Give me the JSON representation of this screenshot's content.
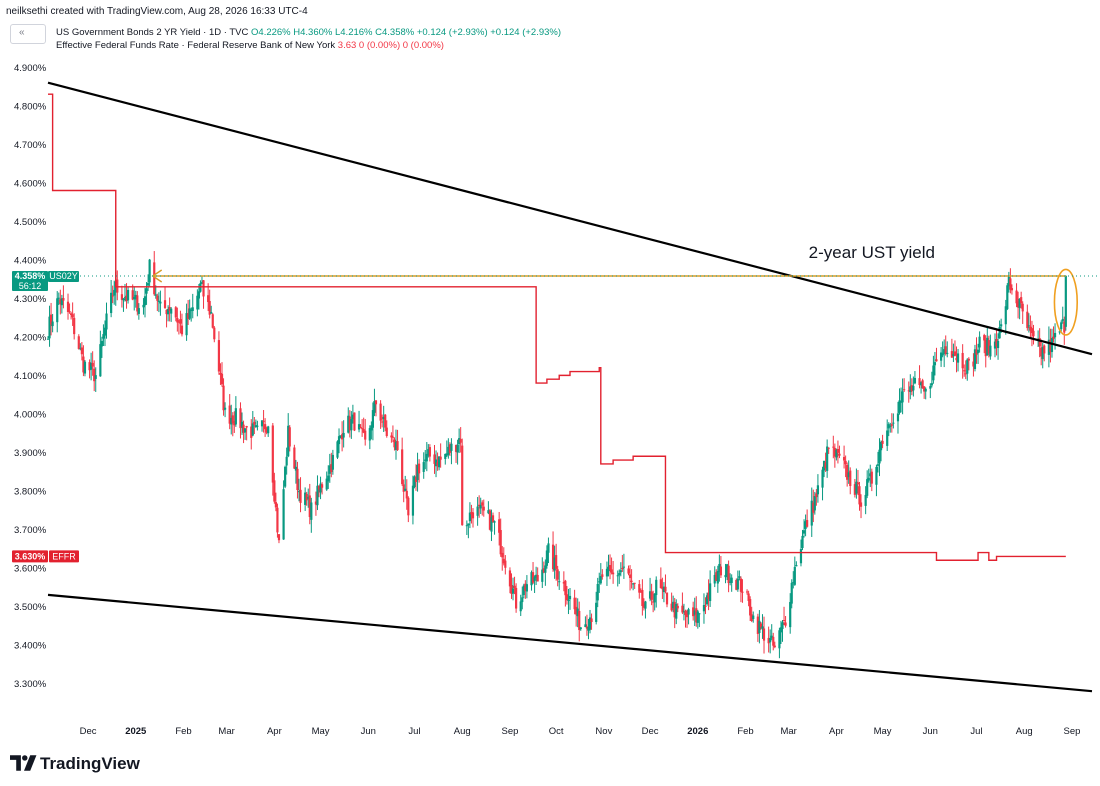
{
  "header": {
    "credit": "neilksethi created with TradingView.com, Aug 28, 2026 16:33 UTC-4",
    "legend_toggle": "«",
    "series1_name": "US Government Bonds 2 YR Yield · 1D · TVC",
    "series1_stats": "O4.226% H4.360% L4.216% C4.358% +0.124 (+2.93%) +0.124 (+2.93%)",
    "series2_name": "Effective Federal Funds Rate · Federal Reserve Bank of New York",
    "series2_stats": "3.63 0 (0.00%) 0 (0.00%)"
  },
  "footer": {
    "brand": "TradingView"
  },
  "colors": {
    "up": "#089981",
    "down": "#f23645",
    "effr": "#e2212f",
    "trendline": "#000000",
    "arrow": "#d79b28",
    "ellipse": "#f0a020"
  },
  "chart_data": {
    "type": "candlestick",
    "title": "2-year UST yield",
    "ylim": [
      3.2,
      4.95
    ],
    "y_ticks": [
      "4.900%",
      "4.800%",
      "4.700%",
      "4.600%",
      "4.500%",
      "4.400%",
      "4.300%",
      "4.200%",
      "4.100%",
      "4.000%",
      "3.900%",
      "3.800%",
      "3.700%",
      "3.600%",
      "3.500%",
      "3.400%",
      "3.300%"
    ],
    "y_tick_values": [
      4.9,
      4.8,
      4.7,
      4.6,
      4.5,
      4.4,
      4.3,
      4.2,
      4.1,
      4.0,
      3.9,
      3.8,
      3.7,
      3.6,
      3.5,
      3.4,
      3.3
    ],
    "x_ticks": [
      {
        "label": "Dec",
        "date": "2024-12-01"
      },
      {
        "label": "2025",
        "date": "2025-01-01"
      },
      {
        "label": "Feb",
        "date": "2025-02-01"
      },
      {
        "label": "Mar",
        "date": "2025-03-01"
      },
      {
        "label": "Apr",
        "date": "2025-04-01"
      },
      {
        "label": "May",
        "date": "2025-05-01"
      },
      {
        "label": "Jun",
        "date": "2025-06-01"
      },
      {
        "label": "Jul",
        "date": "2025-07-01"
      },
      {
        "label": "Aug",
        "date": "2025-08-01"
      },
      {
        "label": "Sep",
        "date": "2025-09-01"
      },
      {
        "label": "Oct",
        "date": "2025-10-01"
      },
      {
        "label": "Nov",
        "date": "2025-11-01"
      },
      {
        "label": "Dec",
        "date": "2025-12-01"
      },
      {
        "label": "2026",
        "date": "2026-01-01"
      },
      {
        "label": "Feb",
        "date": "2026-02-01"
      },
      {
        "label": "Mar",
        "date": "2026-03-01"
      },
      {
        "label": "Apr",
        "date": "2026-04-01"
      },
      {
        "label": "May",
        "date": "2026-05-01"
      },
      {
        "label": "Jun",
        "date": "2026-06-01"
      },
      {
        "label": "Jul",
        "date": "2026-07-01"
      },
      {
        "label": "Aug",
        "date": "2026-08-01"
      },
      {
        "label": "Sep",
        "date": "2026-09-01"
      }
    ],
    "bold_x_ticks": [
      "2025",
      "2026"
    ],
    "x_range": [
      "2024-11-05",
      "2026-09-14"
    ],
    "price_badge": {
      "value": 4.358,
      "text": "4.358%",
      "symbol": "US02Y",
      "countdown": "56:12"
    },
    "effr_badge": {
      "value": 3.63,
      "text": "3.630%",
      "symbol": "EFFR"
    },
    "yield_series": {
      "name": "US02Y",
      "description": "Approximate closing-path anchors of the daily 2-year yield",
      "anchors": [
        [
          "2024-11-05",
          4.22
        ],
        [
          "2024-11-12",
          4.3
        ],
        [
          "2024-11-20",
          4.25
        ],
        [
          "2024-11-28",
          4.13
        ],
        [
          "2024-12-06",
          4.1
        ],
        [
          "2024-12-13",
          4.24
        ],
        [
          "2024-12-18",
          4.33
        ],
        [
          "2024-12-27",
          4.3
        ],
        [
          "2025-01-06",
          4.28
        ],
        [
          "2025-01-10",
          4.38
        ],
        [
          "2025-01-17",
          4.27
        ],
        [
          "2025-01-24",
          4.28
        ],
        [
          "2025-01-31",
          4.22
        ],
        [
          "2025-02-07",
          4.27
        ],
        [
          "2025-02-12",
          4.33
        ],
        [
          "2025-02-19",
          4.26
        ],
        [
          "2025-02-28",
          4.0
        ],
        [
          "2025-03-07",
          3.99
        ],
        [
          "2025-03-14",
          3.96
        ],
        [
          "2025-03-21",
          3.95
        ],
        [
          "2025-03-28",
          3.98
        ],
        [
          "2025-04-04",
          3.66
        ],
        [
          "2025-04-10",
          3.95
        ],
        [
          "2025-04-17",
          3.8
        ],
        [
          "2025-04-25",
          3.75
        ],
        [
          "2025-05-02",
          3.82
        ],
        [
          "2025-05-09",
          3.88
        ],
        [
          "2025-05-16",
          3.97
        ],
        [
          "2025-05-23",
          3.98
        ],
        [
          "2025-05-30",
          3.92
        ],
        [
          "2025-06-06",
          4.03
        ],
        [
          "2025-06-13",
          3.95
        ],
        [
          "2025-06-20",
          3.91
        ],
        [
          "2025-06-27",
          3.73
        ],
        [
          "2025-07-03",
          3.86
        ],
        [
          "2025-07-11",
          3.89
        ],
        [
          "2025-07-18",
          3.88
        ],
        [
          "2025-07-25",
          3.91
        ],
        [
          "2025-07-31",
          3.94
        ],
        [
          "2025-08-01",
          3.7
        ],
        [
          "2025-08-08",
          3.75
        ],
        [
          "2025-08-15",
          3.74
        ],
        [
          "2025-08-22",
          3.71
        ],
        [
          "2025-08-29",
          3.62
        ],
        [
          "2025-09-05",
          3.51
        ],
        [
          "2025-09-12",
          3.56
        ],
        [
          "2025-09-19",
          3.57
        ],
        [
          "2025-09-26",
          3.64
        ],
        [
          "2025-10-03",
          3.58
        ],
        [
          "2025-10-10",
          3.52
        ],
        [
          "2025-10-17",
          3.45
        ],
        [
          "2025-10-24",
          3.48
        ],
        [
          "2025-10-31",
          3.58
        ],
        [
          "2025-11-07",
          3.58
        ],
        [
          "2025-11-14",
          3.6
        ],
        [
          "2025-11-21",
          3.54
        ],
        [
          "2025-11-28",
          3.49
        ],
        [
          "2025-12-05",
          3.55
        ],
        [
          "2025-12-12",
          3.52
        ],
        [
          "2025-12-19",
          3.48
        ],
        [
          "2025-12-31",
          3.47
        ],
        [
          "2026-01-09",
          3.54
        ],
        [
          "2026-01-16",
          3.6
        ],
        [
          "2026-01-23",
          3.58
        ],
        [
          "2026-01-30",
          3.55
        ],
        [
          "2026-02-06",
          3.47
        ],
        [
          "2026-02-13",
          3.43
        ],
        [
          "2026-02-20",
          3.39
        ],
        [
          "2026-02-27",
          3.47
        ],
        [
          "2026-03-06",
          3.62
        ],
        [
          "2026-03-13",
          3.72
        ],
        [
          "2026-03-20",
          3.8
        ],
        [
          "2026-03-27",
          3.91
        ],
        [
          "2026-04-03",
          3.88
        ],
        [
          "2026-04-10",
          3.83
        ],
        [
          "2026-04-17",
          3.78
        ],
        [
          "2026-04-24",
          3.83
        ],
        [
          "2026-05-01",
          3.94
        ],
        [
          "2026-05-08",
          4.0
        ],
        [
          "2026-05-15",
          4.05
        ],
        [
          "2026-05-22",
          4.07
        ],
        [
          "2026-05-29",
          4.05
        ],
        [
          "2026-06-05",
          4.14
        ],
        [
          "2026-06-12",
          4.18
        ],
        [
          "2026-06-19",
          4.15
        ],
        [
          "2026-06-26",
          4.12
        ],
        [
          "2026-07-03",
          4.18
        ],
        [
          "2026-07-10",
          4.17
        ],
        [
          "2026-07-17",
          4.22
        ],
        [
          "2026-07-22",
          4.34
        ],
        [
          "2026-07-29",
          4.28
        ],
        [
          "2026-08-05",
          4.2
        ],
        [
          "2026-08-12",
          4.16
        ],
        [
          "2026-08-19",
          4.18
        ],
        [
          "2026-08-26",
          4.23
        ],
        [
          "2026-08-27",
          4.234
        ],
        [
          "2026-08-28",
          4.358
        ]
      ],
      "last_candle": {
        "date": "2026-08-28",
        "open": 4.226,
        "high": 4.36,
        "low": 4.216,
        "close": 4.358
      }
    },
    "effr_series": {
      "name": "EFFR",
      "steps": [
        [
          "2024-11-05",
          4.83
        ],
        [
          "2024-11-08",
          4.58
        ],
        [
          "2024-12-18",
          4.58
        ],
        [
          "2024-12-19",
          4.33
        ],
        [
          "2025-09-17",
          4.33
        ],
        [
          "2025-09-18",
          4.08
        ],
        [
          "2025-09-25",
          4.09
        ],
        [
          "2025-10-03",
          4.1
        ],
        [
          "2025-10-10",
          4.11
        ],
        [
          "2025-10-29",
          4.12
        ],
        [
          "2025-10-30",
          3.87
        ],
        [
          "2025-11-07",
          3.88
        ],
        [
          "2025-11-20",
          3.89
        ],
        [
          "2025-12-10",
          3.89
        ],
        [
          "2025-12-11",
          3.64
        ],
        [
          "2026-06-04",
          3.64
        ],
        [
          "2026-06-05",
          3.62
        ],
        [
          "2026-07-01",
          3.62
        ],
        [
          "2026-07-02",
          3.64
        ],
        [
          "2026-07-08",
          3.64
        ],
        [
          "2026-07-09",
          3.62
        ],
        [
          "2026-07-13",
          3.62
        ],
        [
          "2026-07-14",
          3.63
        ],
        [
          "2026-08-28",
          3.63
        ]
      ]
    },
    "annotations": [
      {
        "kind": "trendline",
        "from": [
          "2024-11-05",
          4.86
        ],
        "to": [
          "2026-09-14",
          4.155
        ]
      },
      {
        "kind": "trendline",
        "from": [
          "2024-11-05",
          3.53
        ],
        "to": [
          "2026-09-14",
          3.28
        ]
      },
      {
        "kind": "arrow",
        "from": [
          "2026-08-28",
          4.358
        ],
        "to": [
          "2025-01-12",
          4.358
        ]
      },
      {
        "kind": "ellipse",
        "center": [
          "2026-08-28",
          4.29
        ],
        "rx_days": 3.5,
        "ry": 0.085
      },
      {
        "kind": "text",
        "at": [
          "2026-03-14",
          4.405
        ],
        "text": "2-year UST yield"
      }
    ]
  }
}
